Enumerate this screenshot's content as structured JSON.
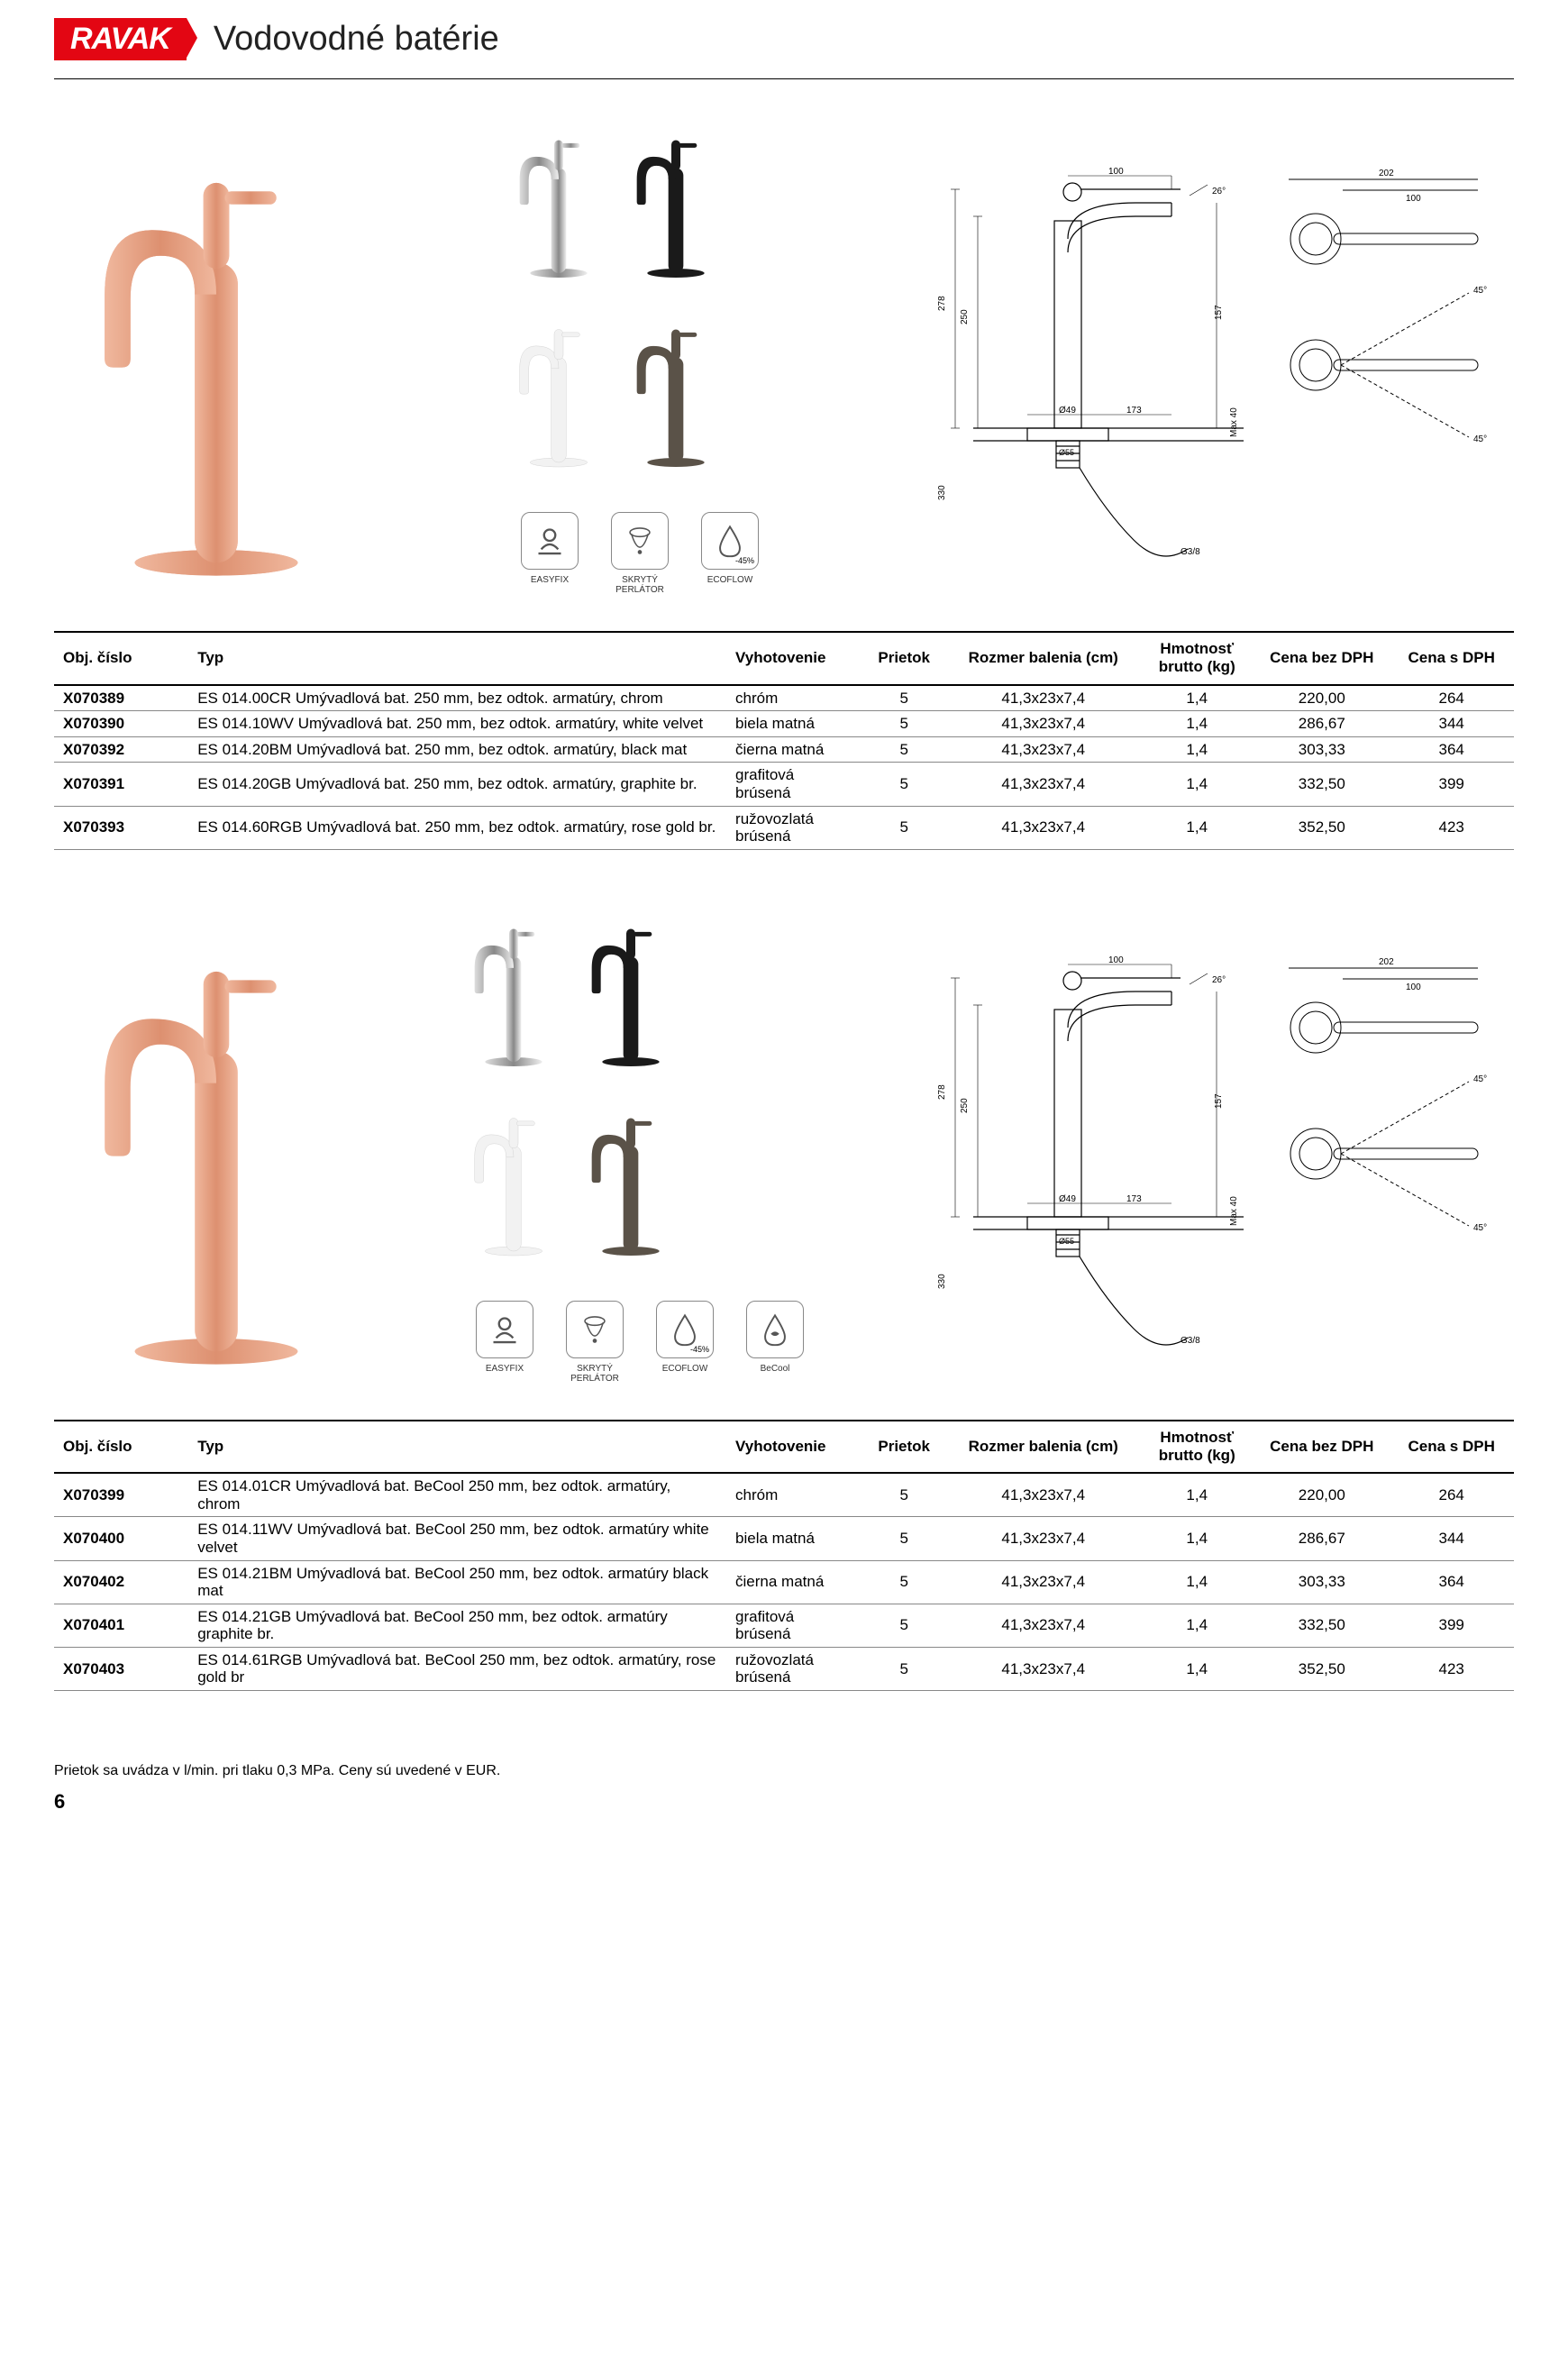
{
  "brand": "RAVAK",
  "page_title": "Vodovodné batérie",
  "footer_note": "Prietok sa uvádza v l/min. pri tlaku 0,3 MPa. Ceny sú uvedené v EUR.",
  "page_number": "6",
  "colors": {
    "brand_red": "#e30613",
    "rose_gold": "#e8a288",
    "chrome": "#b8b8b8",
    "black": "#1a1a1a",
    "white_velvet": "#f2f2f2",
    "graphite": "#5a5248",
    "line": "#000000",
    "icon_border": "#888888"
  },
  "feature_icons": [
    {
      "name": "easyfix-icon",
      "label": "EASYFIX"
    },
    {
      "name": "perlator-icon",
      "label": "SKRYTÝ PERLÁTOR"
    },
    {
      "name": "ecoflow-icon",
      "label": "ECOFLOW",
      "badge": "-45%"
    }
  ],
  "feature_icons_b": [
    {
      "name": "easyfix-icon",
      "label": "EASYFIX"
    },
    {
      "name": "perlator-icon",
      "label": "SKRYTÝ PERLÁTOR"
    },
    {
      "name": "ecoflow-icon",
      "label": "ECOFLOW",
      "badge": "-45%"
    },
    {
      "name": "becool-icon",
      "label": "BeCool"
    }
  ],
  "dimensions_labels": {
    "h278": "278",
    "h250": "250",
    "w173": "173",
    "d49": "Ø49",
    "d55": "Ø55",
    "hmax40": "Max 40",
    "h157": "157",
    "hbelow": "330",
    "thread": "G3/8",
    "top202": "202",
    "top100": "100",
    "ang45": "45°",
    "ang26": "26°"
  },
  "table_headers": {
    "obj": "Obj. číslo",
    "typ": "Typ",
    "vyh": "Vyhotovenie",
    "prie": "Prietok",
    "roz": "Rozmer balenia (cm)",
    "hm": "Hmotnosť brutto (kg)",
    "cb": "Cena bez DPH",
    "cs": "Cena s DPH"
  },
  "tables": [
    {
      "rows": [
        {
          "code": "X070389",
          "typ": "ES 014.00CR Umývadlová bat. 250 mm, bez odtok. armatúry, chrom",
          "vyh": "chróm",
          "prie": "5",
          "roz": "41,3x23x7,4",
          "hm": "1,4",
          "cb": "220,00",
          "cs": "264"
        },
        {
          "code": "X070390",
          "typ": "ES 014.10WV Umývadlová bat. 250 mm, bez odtok. armatúry, white velvet",
          "vyh": "biela matná",
          "prie": "5",
          "roz": "41,3x23x7,4",
          "hm": "1,4",
          "cb": "286,67",
          "cs": "344"
        },
        {
          "code": "X070392",
          "typ": "ES 014.20BM Umývadlová bat. 250 mm, bez odtok. armatúry, black mat",
          "vyh": "čierna matná",
          "prie": "5",
          "roz": "41,3x23x7,4",
          "hm": "1,4",
          "cb": "303,33",
          "cs": "364"
        },
        {
          "code": "X070391",
          "typ": "ES 014.20GB Umývadlová bat. 250 mm, bez odtok. armatúry, graphite br.",
          "vyh": "grafitová brúsená",
          "prie": "5",
          "roz": "41,3x23x7,4",
          "hm": "1,4",
          "cb": "332,50",
          "cs": "399"
        },
        {
          "code": "X070393",
          "typ": "ES 014.60RGB Umývadlová bat. 250 mm, bez odtok. armatúry, rose gold br.",
          "vyh": "ružovozlatá brúsená",
          "prie": "5",
          "roz": "41,3x23x7,4",
          "hm": "1,4",
          "cb": "352,50",
          "cs": "423"
        }
      ]
    },
    {
      "rows": [
        {
          "code": "X070399",
          "typ": "ES 014.01CR Umývadlová bat. BeCool 250 mm, bez odtok. armatúry, chrom",
          "vyh": "chróm",
          "prie": "5",
          "roz": "41,3x23x7,4",
          "hm": "1,4",
          "cb": "220,00",
          "cs": "264"
        },
        {
          "code": "X070400",
          "typ": "ES 014.11WV Umývadlová bat. BeCool 250 mm, bez odtok. armatúry white velvet",
          "vyh": "biela matná",
          "prie": "5",
          "roz": "41,3x23x7,4",
          "hm": "1,4",
          "cb": "286,67",
          "cs": "344"
        },
        {
          "code": "X070402",
          "typ": "ES 014.21BM Umývadlová bat. BeCool 250 mm, bez odtok. armatúry black mat",
          "vyh": "čierna matná",
          "prie": "5",
          "roz": "41,3x23x7,4",
          "hm": "1,4",
          "cb": "303,33",
          "cs": "364"
        },
        {
          "code": "X070401",
          "typ": "ES 014.21GB Umývadlová bat. BeCool 250 mm, bez odtok. armatúry graphite br.",
          "vyh": "grafitová brúsená",
          "prie": "5",
          "roz": "41,3x23x7,4",
          "hm": "1,4",
          "cb": "332,50",
          "cs": "399"
        },
        {
          "code": "X070403",
          "typ": "ES 014.61RGB Umývadlová bat. BeCool 250 mm, bez odtok. armatúry, rose gold br",
          "vyh": "ružovozlatá brúsená",
          "prie": "5",
          "roz": "41,3x23x7,4",
          "hm": "1,4",
          "cb": "352,50",
          "cs": "423"
        }
      ]
    }
  ]
}
